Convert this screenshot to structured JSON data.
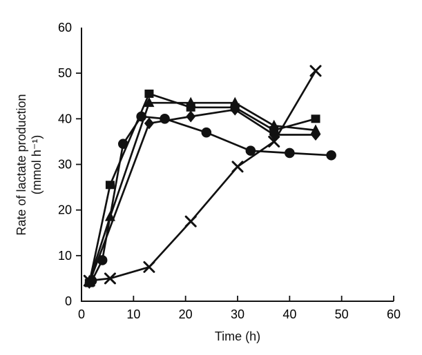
{
  "chart_data": {
    "type": "line",
    "title": "",
    "xlabel": "Time (h)",
    "ylabel_line1": "Rate of lactate production",
    "ylabel_line2": "(mmol h⁻¹)",
    "xlim": [
      0,
      60
    ],
    "ylim": [
      0,
      60
    ],
    "x_ticks": [
      0,
      10,
      20,
      30,
      40,
      50,
      60
    ],
    "y_ticks": [
      0,
      10,
      20,
      30,
      40,
      50,
      60
    ],
    "grid": false,
    "legend": "none",
    "line_color": "#111111",
    "series": [
      {
        "name": "filled-square",
        "marker": "square",
        "points": [
          [
            1.5,
            4
          ],
          [
            5.5,
            25.5
          ],
          [
            13,
            45.5
          ],
          [
            21,
            42.5
          ],
          [
            29.5,
            42.5
          ],
          [
            37,
            37.5
          ],
          [
            45,
            40
          ]
        ]
      },
      {
        "name": "filled-triangle",
        "marker": "triangle",
        "points": [
          [
            1.5,
            4.5
          ],
          [
            5.5,
            18.5
          ],
          [
            13,
            43.5
          ],
          [
            21,
            43.5
          ],
          [
            29.5,
            43.5
          ],
          [
            37,
            38.5
          ],
          [
            45,
            37.5
          ]
        ]
      },
      {
        "name": "filled-diamond",
        "marker": "diamond",
        "points": [
          [
            1.5,
            4
          ],
          [
            13,
            39
          ],
          [
            21,
            40.5
          ],
          [
            29.5,
            42
          ],
          [
            37,
            36.5
          ],
          [
            45,
            36.5
          ]
        ]
      },
      {
        "name": "filled-circle",
        "marker": "circle",
        "points": [
          [
            2,
            4.5
          ],
          [
            4,
            9
          ],
          [
            8,
            34.5
          ],
          [
            11.5,
            40.5
          ],
          [
            16,
            40
          ],
          [
            24,
            37
          ],
          [
            32.5,
            33
          ],
          [
            40,
            32.5
          ],
          [
            48,
            32
          ]
        ]
      },
      {
        "name": "cross",
        "marker": "x",
        "points": [
          [
            1.5,
            4.5
          ],
          [
            5.5,
            5
          ],
          [
            13,
            7.5
          ],
          [
            21,
            17.5
          ],
          [
            30,
            29.5
          ],
          [
            37,
            35
          ],
          [
            45,
            50.5
          ]
        ]
      }
    ]
  }
}
